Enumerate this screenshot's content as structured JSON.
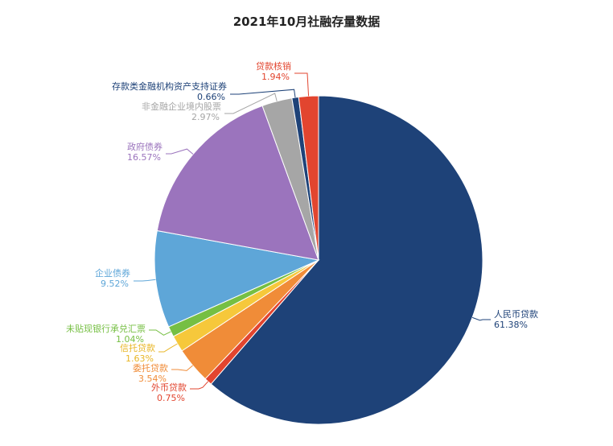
{
  "chart_data": {
    "type": "pie",
    "title": "2021年10月社融存量数据",
    "slices": [
      {
        "name": "人民币贷款",
        "value": 61.38,
        "label": "61.38%",
        "color": "#1e4278"
      },
      {
        "name": "外币贷款",
        "value": 0.75,
        "label": "0.75%",
        "color": "#e2452f"
      },
      {
        "name": "委托贷款",
        "value": 3.54,
        "label": "3.54%",
        "color": "#f08c38"
      },
      {
        "name": "信托贷款",
        "value": 1.63,
        "label": "1.63%",
        "color": "#f6c83b"
      },
      {
        "name": "未贴现银行承兑汇票",
        "value": 1.04,
        "label": "1.04%",
        "color": "#76bf43"
      },
      {
        "name": "企业债券",
        "value": 9.52,
        "label": "9.52%",
        "color": "#5ea6d8"
      },
      {
        "name": "政府债券",
        "value": 16.57,
        "label": "16.57%",
        "color": "#9b74bd"
      },
      {
        "name": "非金融企业境内股票",
        "value": 2.97,
        "label": "2.97%",
        "color": "#a6a6a6"
      },
      {
        "name": "存款类金融机构资产支持证券",
        "value": 0.66,
        "label": "0.66%",
        "color": "#1e4278"
      },
      {
        "name": "贷款核销",
        "value": 1.94,
        "label": "1.94%",
        "color": "#e2452f"
      }
    ],
    "label_colors": [
      "#1e4278",
      "#e2452f",
      "#f08c38",
      "#e8b626",
      "#76bf43",
      "#5ea6d8",
      "#9b74bd",
      "#a6a6a6",
      "#1e4278",
      "#e2452f"
    ],
    "legend": "none",
    "grid": false
  }
}
